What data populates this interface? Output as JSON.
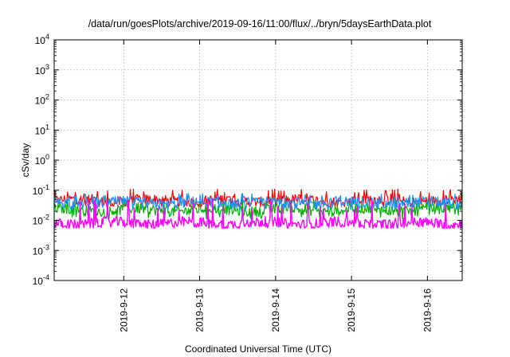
{
  "chart_data": {
    "type": "line",
    "title": "/data/run/goesPlots/archive/2019-09-16/11:00/flux/../bryn/5daysEarthData.plot",
    "xlabel": "Coordinated Universal Time (UTC)",
    "ylabel": "cSv/day",
    "yscale": "log",
    "ylim": [
      0.0001,
      10000
    ],
    "y_ticks": [
      {
        "value": 10000,
        "base": "10",
        "exp": "4"
      },
      {
        "value": 1000,
        "base": "10",
        "exp": "3"
      },
      {
        "value": 100,
        "base": "10",
        "exp": "2"
      },
      {
        "value": 10,
        "base": "10",
        "exp": "1"
      },
      {
        "value": 1,
        "base": "10",
        "exp": "0"
      },
      {
        "value": 0.1,
        "base": "10",
        "exp": "-1"
      },
      {
        "value": 0.01,
        "base": "10",
        "exp": "-2"
      },
      {
        "value": 0.001,
        "base": "10",
        "exp": "-3"
      },
      {
        "value": 0.0001,
        "base": "10",
        "exp": "-4"
      }
    ],
    "xlim": [
      "2019-09-11T02:00",
      "2019-09-16T11:00"
    ],
    "x_ticks": [
      {
        "value": "2019-09-12T00:00",
        "label": "2019-9-12"
      },
      {
        "value": "2019-09-13T00:00",
        "label": "2019-9-13"
      },
      {
        "value": "2019-09-14T00:00",
        "label": "2019-9-14"
      },
      {
        "value": "2019-09-15T00:00",
        "label": "2019-9-15"
      },
      {
        "value": "2019-09-16T00:00",
        "label": "2019-9-16"
      }
    ],
    "grid": true,
    "series": [
      {
        "color": "#ff0000",
        "typical": 0.045,
        "min": 0.028,
        "max": 0.11
      },
      {
        "color": "#00b000",
        "typical": 0.022,
        "min": 0.011,
        "max": 0.05
      },
      {
        "color": "#1e90ff",
        "typical": 0.038,
        "min": 0.022,
        "max": 0.08
      },
      {
        "color": "#ff00ff",
        "typical": 0.008,
        "min": 0.0055,
        "max": 0.055
      }
    ]
  }
}
